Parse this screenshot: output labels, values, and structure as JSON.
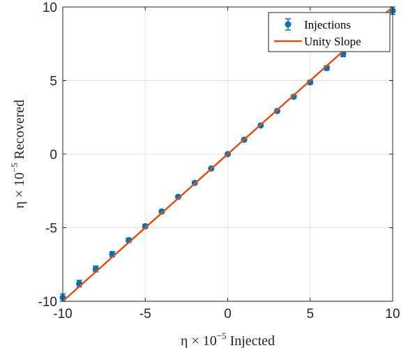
{
  "chart_data": {
    "type": "scatter",
    "title": "",
    "xlabel": {
      "prefix": "η × 10",
      "exponent": "−5",
      "suffix": " Injected"
    },
    "ylabel": {
      "prefix": "η × 10",
      "exponent": "−5",
      "suffix": " Recovered"
    },
    "xlim": [
      -10,
      10
    ],
    "ylim": [
      -10,
      10
    ],
    "xticks": [
      -10,
      -5,
      0,
      5,
      10
    ],
    "yticks": [
      -10,
      -5,
      0,
      5,
      10
    ],
    "xtick_labels": [
      "-10",
      "-5",
      "0",
      "5",
      "10"
    ],
    "ytick_labels": [
      "-10",
      "-5",
      "0",
      "5",
      "10"
    ],
    "grid": true,
    "legend_position": "top-right",
    "series": [
      {
        "name": "Injections",
        "kind": "errorbar",
        "color": "#0072BD",
        "x": [
          -10,
          -9,
          -8,
          -7,
          -6,
          -5,
          -4,
          -3,
          -2,
          -1,
          0,
          1,
          2,
          3,
          4,
          5,
          6,
          7,
          8,
          9,
          10
        ],
        "y": [
          -9.75,
          -8.8,
          -7.8,
          -6.8,
          -5.85,
          -4.9,
          -3.9,
          -2.9,
          -1.95,
          -0.98,
          0.0,
          0.98,
          1.95,
          2.93,
          3.9,
          4.88,
          5.85,
          6.8,
          7.8,
          8.78,
          9.75
        ],
        "yerr": [
          0.25,
          0.22,
          0.2,
          0.18,
          0.15,
          0.13,
          0.1,
          0.08,
          0.06,
          0.05,
          0.04,
          0.05,
          0.06,
          0.08,
          0.1,
          0.13,
          0.15,
          0.18,
          0.2,
          0.22,
          0.25
        ]
      },
      {
        "name": "Unity Slope",
        "kind": "line",
        "color": "#D95319",
        "x": [
          -10,
          10
        ],
        "y": [
          -10,
          10
        ]
      }
    ]
  }
}
